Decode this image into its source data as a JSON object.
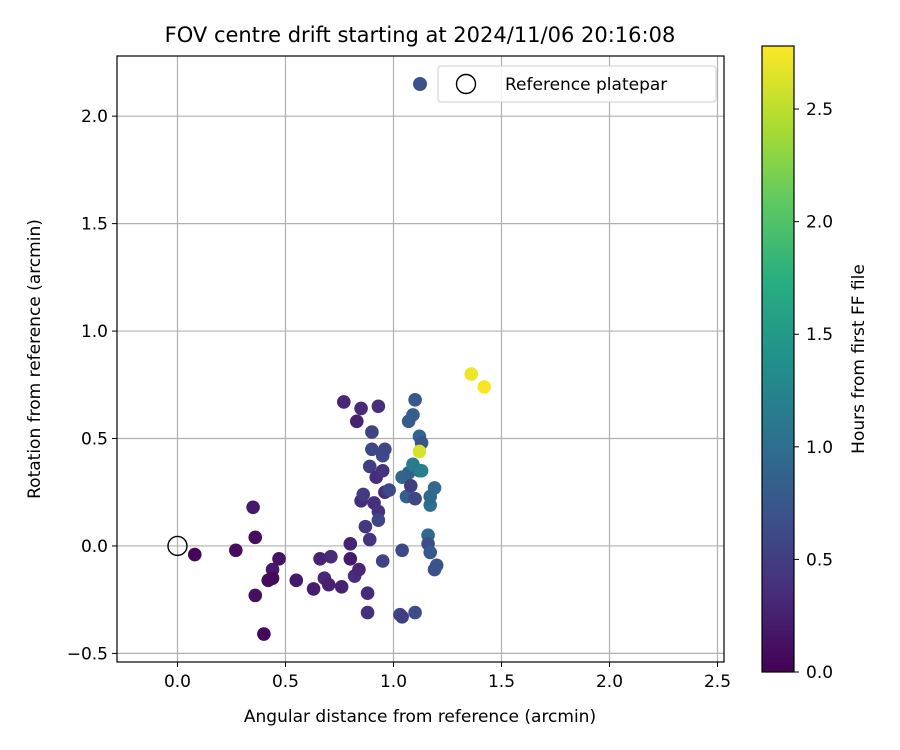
{
  "chart_data": {
    "type": "scatter",
    "title": "FOV centre drift starting at 2024/11/06 20:16:08",
    "xlabel": "Angular distance from reference (arcmin)",
    "ylabel": "Rotation from reference (arcmin)",
    "xlim": [
      -0.28,
      2.53
    ],
    "ylim": [
      -0.54,
      2.28
    ],
    "xticks": [
      0.0,
      0.5,
      1.0,
      1.5,
      2.0,
      2.5
    ],
    "xtick_labels": [
      "0.0",
      "0.5",
      "1.0",
      "1.5",
      "2.0",
      "2.5"
    ],
    "yticks": [
      -0.5,
      0.0,
      0.5,
      1.0,
      1.5,
      2.0
    ],
    "ytick_labels": [
      "−0.5",
      "0.0",
      "0.5",
      "1.0",
      "1.5",
      "2.0"
    ],
    "grid": true,
    "legend": {
      "placement": "top-right",
      "entries": [
        "Reference platepar"
      ]
    },
    "reference_point": {
      "x": 0.0,
      "y": 0.0,
      "label": "Reference platepar"
    },
    "colorbar": {
      "label": "Hours from first FF file",
      "colormap": "viridis",
      "range": [
        0.0,
        2.78
      ],
      "ticks": [
        0.0,
        0.5,
        1.0,
        1.5,
        2.0,
        2.5
      ],
      "tick_labels": [
        "0.0",
        "0.5",
        "1.0",
        "1.5",
        "2.0",
        "2.5"
      ]
    },
    "points": [
      {
        "x": 0.08,
        "y": -0.04,
        "c": 0.03
      },
      {
        "x": 0.27,
        "y": -0.02,
        "c": 0.1
      },
      {
        "x": 0.35,
        "y": 0.18,
        "c": 0.18
      },
      {
        "x": 0.36,
        "y": 0.04,
        "c": 0.1
      },
      {
        "x": 0.36,
        "y": -0.23,
        "c": 0.12
      },
      {
        "x": 0.4,
        "y": -0.41,
        "c": 0.05
      },
      {
        "x": 0.42,
        "y": -0.16,
        "c": 0.08
      },
      {
        "x": 0.44,
        "y": -0.11,
        "c": 0.2
      },
      {
        "x": 0.44,
        "y": -0.15,
        "c": 0.07
      },
      {
        "x": 0.47,
        "y": -0.06,
        "c": 0.15
      },
      {
        "x": 0.55,
        "y": -0.16,
        "c": 0.18
      },
      {
        "x": 0.63,
        "y": -0.2,
        "c": 0.22
      },
      {
        "x": 0.66,
        "y": -0.06,
        "c": 0.28
      },
      {
        "x": 0.68,
        "y": -0.15,
        "c": 0.3
      },
      {
        "x": 0.7,
        "y": -0.18,
        "c": 0.25
      },
      {
        "x": 0.71,
        "y": -0.05,
        "c": 0.32
      },
      {
        "x": 0.76,
        "y": -0.19,
        "c": 0.26
      },
      {
        "x": 0.77,
        "y": 0.67,
        "c": 0.3
      },
      {
        "x": 0.8,
        "y": -0.06,
        "c": 0.2
      },
      {
        "x": 0.8,
        "y": 0.01,
        "c": 0.28
      },
      {
        "x": 0.82,
        "y": -0.14,
        "c": 0.35
      },
      {
        "x": 0.83,
        "y": 0.58,
        "c": 0.27
      },
      {
        "x": 0.84,
        "y": -0.11,
        "c": 0.3
      },
      {
        "x": 0.85,
        "y": 0.64,
        "c": 0.32
      },
      {
        "x": 0.85,
        "y": 0.21,
        "c": 0.36
      },
      {
        "x": 0.86,
        "y": 0.24,
        "c": 0.48
      },
      {
        "x": 0.87,
        "y": 0.09,
        "c": 0.45
      },
      {
        "x": 0.88,
        "y": -0.22,
        "c": 0.33
      },
      {
        "x": 0.88,
        "y": -0.31,
        "c": 0.38
      },
      {
        "x": 0.89,
        "y": 0.03,
        "c": 0.42
      },
      {
        "x": 0.89,
        "y": 0.37,
        "c": 0.52
      },
      {
        "x": 0.9,
        "y": 0.53,
        "c": 0.55
      },
      {
        "x": 0.9,
        "y": 0.45,
        "c": 0.6
      },
      {
        "x": 0.91,
        "y": 0.2,
        "c": 0.38
      },
      {
        "x": 0.92,
        "y": 0.32,
        "c": 0.36
      },
      {
        "x": 0.93,
        "y": 0.65,
        "c": 0.38
      },
      {
        "x": 0.93,
        "y": 0.16,
        "c": 0.4
      },
      {
        "x": 0.93,
        "y": 0.12,
        "c": 0.58
      },
      {
        "x": 0.95,
        "y": -0.07,
        "c": 0.55
      },
      {
        "x": 0.95,
        "y": 0.42,
        "c": 0.62
      },
      {
        "x": 0.95,
        "y": 0.35,
        "c": 0.4
      },
      {
        "x": 0.96,
        "y": 0.45,
        "c": 0.6
      },
      {
        "x": 0.96,
        "y": 0.25,
        "c": 0.35
      },
      {
        "x": 0.98,
        "y": 0.26,
        "c": 0.62
      },
      {
        "x": 1.03,
        "y": -0.32,
        "c": 0.58
      },
      {
        "x": 1.04,
        "y": -0.33,
        "c": 0.52
      },
      {
        "x": 1.04,
        "y": -0.02,
        "c": 0.62
      },
      {
        "x": 1.04,
        "y": 0.32,
        "c": 0.92
      },
      {
        "x": 1.06,
        "y": 0.23,
        "c": 0.85
      },
      {
        "x": 1.07,
        "y": 0.58,
        "c": 0.8
      },
      {
        "x": 1.07,
        "y": 0.34,
        "c": 0.88
      },
      {
        "x": 1.08,
        "y": 0.28,
        "c": 0.5
      },
      {
        "x": 1.09,
        "y": 0.61,
        "c": 0.82
      },
      {
        "x": 1.09,
        "y": 0.38,
        "c": 1.15
      },
      {
        "x": 1.1,
        "y": 0.22,
        "c": 0.6
      },
      {
        "x": 1.1,
        "y": -0.31,
        "c": 0.65
      },
      {
        "x": 1.1,
        "y": 0.68,
        "c": 0.75
      },
      {
        "x": 1.12,
        "y": 0.51,
        "c": 0.9
      },
      {
        "x": 1.12,
        "y": 0.35,
        "c": 1.05
      },
      {
        "x": 1.13,
        "y": 0.48,
        "c": 0.72
      },
      {
        "x": 1.13,
        "y": 0.35,
        "c": 1.2
      },
      {
        "x": 1.16,
        "y": 0.05,
        "c": 0.95
      },
      {
        "x": 1.16,
        "y": 0.01,
        "c": 0.65
      },
      {
        "x": 1.17,
        "y": 0.19,
        "c": 1.0
      },
      {
        "x": 1.17,
        "y": 0.23,
        "c": 0.95
      },
      {
        "x": 1.17,
        "y": -0.03,
        "c": 0.78
      },
      {
        "x": 1.19,
        "y": 0.27,
        "c": 0.95
      },
      {
        "x": 1.19,
        "y": -0.11,
        "c": 0.68
      },
      {
        "x": 1.2,
        "y": -0.09,
        "c": 0.72
      },
      {
        "x": 1.12,
        "y": 0.44,
        "c": 2.62
      },
      {
        "x": 1.36,
        "y": 0.8,
        "c": 2.72
      },
      {
        "x": 1.42,
        "y": 0.74,
        "c": 2.76
      }
    ]
  }
}
